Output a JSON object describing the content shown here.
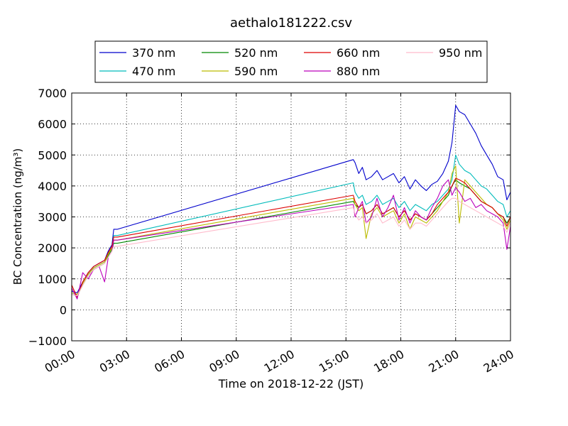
{
  "chart_data": {
    "type": "line",
    "title": "aethalo181222.csv",
    "xlabel": "Time on 2018-12-22 (JST)",
    "ylabel": "BC Concentration (ng/m³)",
    "xlim": [
      0,
      24
    ],
    "ylim": [
      -1000,
      7000
    ],
    "x_ticks": [
      0,
      3,
      6,
      9,
      12,
      15,
      18,
      21,
      24
    ],
    "x_tick_labels": [
      "00:00",
      "03:00",
      "06:00",
      "09:00",
      "12:00",
      "15:00",
      "18:00",
      "21:00",
      "24:00"
    ],
    "y_ticks": [
      -1000,
      0,
      1000,
      2000,
      3000,
      4000,
      5000,
      6000,
      7000
    ],
    "y_tick_labels": [
      "−1000",
      "0",
      "1000",
      "2000",
      "3000",
      "4000",
      "5000",
      "6000",
      "7000"
    ],
    "grid": true,
    "legend_position": "top",
    "series": [
      {
        "name": "370 nm",
        "color": "#0000cc",
        "x": [
          0.0,
          0.3,
          0.6,
          0.9,
          1.2,
          1.5,
          1.8,
          2.0,
          2.2,
          2.3,
          2.5,
          15.4,
          15.5,
          15.7,
          15.9,
          16.1,
          16.4,
          16.7,
          17.0,
          17.3,
          17.6,
          17.9,
          18.2,
          18.5,
          18.8,
          19.1,
          19.4,
          19.7,
          20.0,
          20.3,
          20.6,
          20.8,
          21.0,
          21.2,
          21.5,
          21.8,
          22.1,
          22.4,
          22.7,
          23.0,
          23.3,
          23.6,
          23.8,
          24.0
        ],
        "y": [
          600,
          550,
          900,
          1200,
          1400,
          1500,
          1600,
          1900,
          2100,
          2600,
          2600,
          4850,
          4750,
          4400,
          4600,
          4200,
          4300,
          4500,
          4200,
          4300,
          4400,
          4100,
          4300,
          3900,
          4200,
          4000,
          3850,
          4050,
          4150,
          4400,
          4800,
          5400,
          6600,
          6400,
          6300,
          6000,
          5700,
          5300,
          5000,
          4700,
          4300,
          4200,
          3550,
          3800
        ]
      },
      {
        "name": "470 nm",
        "color": "#00bbbb",
        "x": [
          0.0,
          0.3,
          0.6,
          0.9,
          1.2,
          1.5,
          1.8,
          2.0,
          2.2,
          2.3,
          2.5,
          15.4,
          15.5,
          15.7,
          15.9,
          16.1,
          16.4,
          16.7,
          17.0,
          17.3,
          17.6,
          17.9,
          18.2,
          18.5,
          18.8,
          19.1,
          19.4,
          19.7,
          20.0,
          20.3,
          20.6,
          20.8,
          21.0,
          21.2,
          21.5,
          21.8,
          22.1,
          22.4,
          22.7,
          23.0,
          23.3,
          23.6,
          23.8,
          24.0
        ],
        "y": [
          550,
          500,
          850,
          1150,
          1350,
          1450,
          1550,
          1800,
          2000,
          2400,
          2400,
          4100,
          3800,
          3600,
          3700,
          3400,
          3500,
          3700,
          3400,
          3500,
          3600,
          3300,
          3500,
          3200,
          3400,
          3300,
          3200,
          3400,
          3500,
          3700,
          3900,
          4200,
          5000,
          4700,
          4500,
          4400,
          4200,
          4000,
          3900,
          3700,
          3500,
          3400,
          3000,
          3200
        ]
      },
      {
        "name": "520 nm",
        "color": "#008800",
        "x": [
          0.0,
          0.3,
          0.6,
          0.9,
          1.2,
          1.5,
          1.8,
          2.0,
          2.2,
          2.3,
          2.5,
          15.4,
          15.5,
          15.7,
          15.9,
          16.1,
          16.4,
          16.7,
          17.0,
          17.3,
          17.6,
          17.9,
          18.2,
          18.5,
          18.8,
          19.1,
          19.4,
          19.7,
          20.0,
          20.3,
          20.6,
          20.8,
          21.0,
          21.2,
          21.5,
          21.8,
          22.1,
          22.4,
          22.7,
          23.0,
          23.3,
          23.6,
          23.8,
          24.0
        ],
        "y": [
          500,
          450,
          800,
          1100,
          1300,
          1400,
          1500,
          1750,
          1950,
          2150,
          2150,
          3500,
          3400,
          3300,
          3400,
          3100,
          3200,
          3400,
          3100,
          3200,
          3300,
          3000,
          3200,
          2900,
          3100,
          3000,
          2900,
          3100,
          3300,
          3500,
          3700,
          4000,
          4200,
          4100,
          4000,
          3900,
          3700,
          3500,
          3400,
          3300,
          3100,
          3000,
          2800,
          3000
        ]
      },
      {
        "name": "590 nm",
        "color": "#bbbb00",
        "x": [
          0.0,
          0.3,
          0.6,
          0.9,
          1.2,
          1.5,
          1.8,
          2.0,
          2.2,
          2.3,
          2.5,
          15.4,
          15.5,
          15.7,
          15.9,
          16.1,
          16.4,
          16.7,
          17.0,
          17.3,
          17.6,
          17.9,
          18.2,
          18.5,
          18.8,
          19.1,
          19.4,
          19.7,
          20.0,
          20.3,
          20.6,
          20.8,
          21.0,
          21.2,
          21.5,
          21.8,
          22.1,
          22.4,
          22.7,
          23.0,
          23.3,
          23.6,
          23.8,
          24.0
        ],
        "y": [
          550,
          500,
          850,
          1150,
          1350,
          1450,
          1550,
          1800,
          2000,
          2250,
          2250,
          3600,
          3400,
          3200,
          3300,
          2300,
          3100,
          3300,
          3000,
          3100,
          3200,
          2800,
          3100,
          2600,
          3000,
          2900,
          2800,
          3000,
          3200,
          3500,
          3800,
          4400,
          4650,
          2800,
          4200,
          4000,
          3800,
          3600,
          3400,
          3300,
          3100,
          2900,
          2600,
          2900
        ]
      },
      {
        "name": "660 nm",
        "color": "#dd0000",
        "x": [
          0.0,
          0.3,
          0.6,
          0.9,
          1.2,
          1.5,
          1.8,
          2.0,
          2.2,
          2.3,
          2.5,
          15.4,
          15.5,
          15.7,
          15.9,
          16.1,
          16.4,
          16.7,
          17.0,
          17.3,
          17.6,
          17.9,
          18.2,
          18.5,
          18.8,
          19.1,
          19.4,
          19.7,
          20.0,
          20.3,
          20.6,
          20.8,
          21.0,
          21.2,
          21.5,
          21.8,
          22.1,
          22.4,
          22.7,
          23.0,
          23.3,
          23.6,
          23.8,
          24.0
        ],
        "y": [
          800,
          400,
          900,
          1200,
          1400,
          1500,
          1600,
          1850,
          2050,
          2350,
          2350,
          3700,
          3500,
          3300,
          3400,
          3100,
          3200,
          3400,
          3100,
          3200,
          3300,
          3000,
          3200,
          2900,
          3100,
          3000,
          2900,
          3100,
          3400,
          3600,
          3800,
          4000,
          4250,
          4200,
          4100,
          3900,
          3700,
          3500,
          3400,
          3300,
          3100,
          3000,
          2700,
          3000
        ]
      },
      {
        "name": "880 nm",
        "color": "#bb00bb",
        "x": [
          0.0,
          0.3,
          0.6,
          0.9,
          1.2,
          1.5,
          1.8,
          2.0,
          2.2,
          2.3,
          2.5,
          15.4,
          15.5,
          15.7,
          15.9,
          16.1,
          16.4,
          16.7,
          17.0,
          17.3,
          17.6,
          17.9,
          18.2,
          18.5,
          18.8,
          19.1,
          19.4,
          19.7,
          20.0,
          20.3,
          20.6,
          20.8,
          21.0,
          21.2,
          21.5,
          21.8,
          22.1,
          22.4,
          22.7,
          23.0,
          23.3,
          23.6,
          23.8,
          24.0
        ],
        "y": [
          700,
          350,
          1200,
          1000,
          1300,
          1400,
          900,
          1700,
          1900,
          2250,
          2250,
          3400,
          3000,
          3300,
          3500,
          2800,
          3000,
          3600,
          3000,
          3300,
          3700,
          2900,
          3300,
          2800,
          3200,
          3000,
          2900,
          3300,
          3600,
          4000,
          4200,
          3700,
          3950,
          3800,
          3500,
          3600,
          3300,
          3400,
          3200,
          3100,
          3000,
          2800,
          1950,
          2700
        ]
      },
      {
        "name": "950 nm",
        "color": "#ffbbcc",
        "x": [
          0.0,
          0.3,
          0.6,
          0.9,
          1.2,
          1.5,
          1.8,
          2.0,
          2.2,
          2.3,
          2.5,
          15.4,
          15.5,
          15.7,
          15.9,
          16.1,
          16.4,
          16.7,
          17.0,
          17.3,
          17.6,
          17.9,
          18.2,
          18.5,
          18.8,
          19.1,
          19.4,
          19.7,
          20.0,
          20.3,
          20.6,
          20.8,
          21.0,
          21.2,
          21.5,
          21.8,
          22.1,
          22.4,
          22.7,
          23.0,
          23.3,
          23.6,
          23.8,
          24.0
        ],
        "y": [
          500,
          450,
          800,
          1100,
          1300,
          1400,
          1500,
          1700,
          1900,
          2050,
          2050,
          3300,
          3100,
          2900,
          3000,
          2800,
          2900,
          3100,
          2800,
          2900,
          3000,
          2700,
          2900,
          2600,
          2800,
          2800,
          2700,
          2900,
          3100,
          3300,
          3500,
          3600,
          3600,
          3500,
          3400,
          3300,
          3200,
          3100,
          3000,
          2900,
          2800,
          2700,
          2500,
          2800
        ]
      }
    ]
  }
}
